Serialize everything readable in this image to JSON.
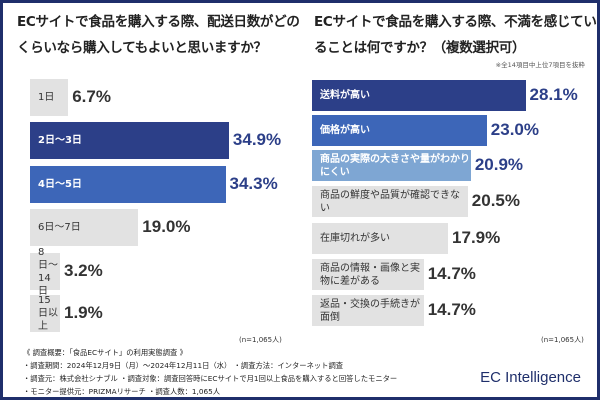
{
  "colors": {
    "dark": "#2c3f88",
    "mid": "#3d66b8",
    "light": "#7ea6d3",
    "gray": "#e2e2e2",
    "border": "#1f2f6b"
  },
  "chart_data": [
    {
      "type": "bar",
      "orientation": "horizontal",
      "title": "ECサイトで食品を購入する際、配送日数がどのくらいなら購入してもよいと思いますか？",
      "categories": [
        "1日",
        "2日〜3日",
        "4日〜5日",
        "6日〜7日",
        "8日〜14日",
        "15日以上"
      ],
      "values": [
        6.7,
        34.9,
        34.3,
        19.0,
        3.2,
        1.9
      ],
      "labels": [
        "6.7%",
        "34.9%",
        "34.3%",
        "19.0%",
        "3.2%",
        "1.9%"
      ],
      "highlight": [
        "gray",
        "dark",
        "mid",
        "gray",
        "gray",
        "gray"
      ],
      "n": "(n=1,065人)"
    },
    {
      "type": "bar",
      "orientation": "horizontal",
      "title": "ECサイトで食品を購入する際、不満を感じていることは何ですか？（複数選択可）",
      "note": "※全14項目中上位7項目を抜粋",
      "categories": [
        "送料が高い",
        "価格が高い",
        "商品の実際の大きさや量がわかりにくい",
        "商品の鮮度や品質が確認できない",
        "在庫切れが多い",
        "商品の情報・画像と実物に差がある",
        "返品・交換の手続きが面倒"
      ],
      "values": [
        28.1,
        23.0,
        20.9,
        20.5,
        17.9,
        14.7,
        14.7
      ],
      "labels": [
        "28.1%",
        "23.0%",
        "20.9%",
        "20.5%",
        "17.9%",
        "14.7%",
        "14.7%"
      ],
      "highlight": [
        "dark",
        "mid",
        "light",
        "gray",
        "gray",
        "gray",
        "gray"
      ],
      "n": "(n=1,065人)"
    }
  ],
  "footer": {
    "lines": [
      "《 調査概要：「食品ECサイト」の利用実態調査 》",
      "・調査期間：2024年12月9日（月）〜2024年12月11日（水） ・調査方法：インターネット調査",
      "・調査元：株式会社シナブル ・調査対象：調査回答時にECサイトで月1回以上食品を購入すると回答したモニター",
      "・モニター提供元：PRIZMAリサーチ ・調査人数：1,065人"
    ],
    "brand": "EC Intelligence"
  }
}
